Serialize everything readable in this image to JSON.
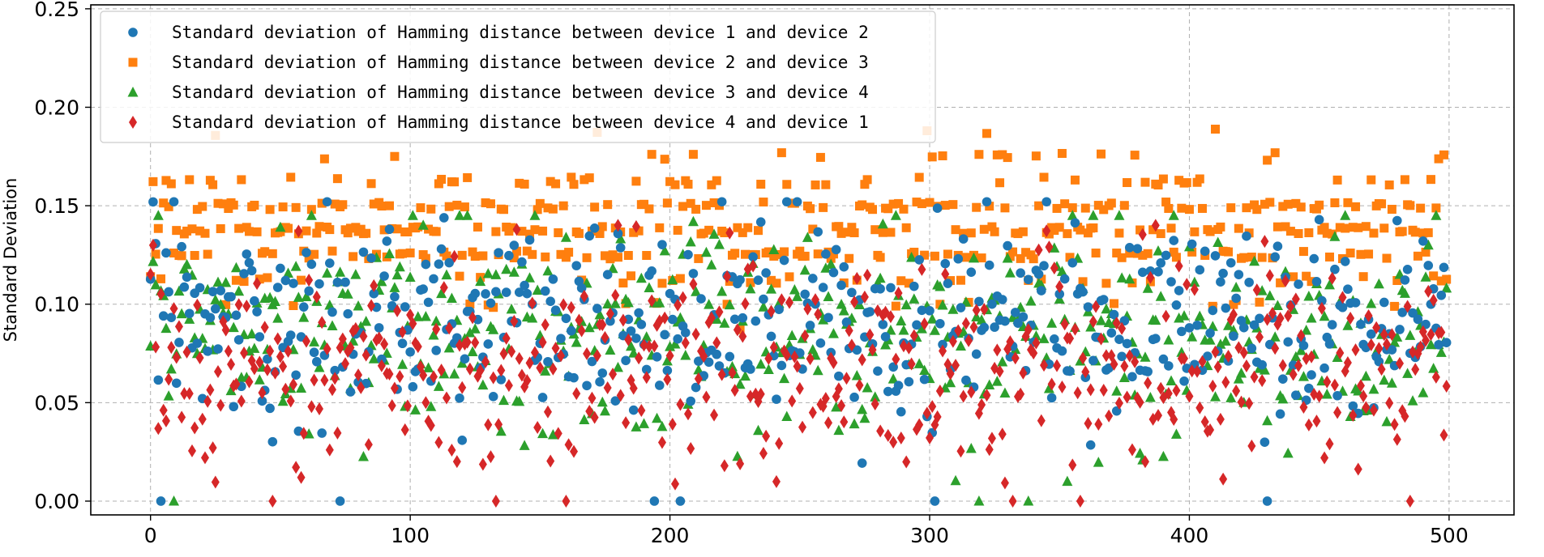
{
  "chart_data": {
    "type": "scatter",
    "title": "",
    "xlabel": "",
    "ylabel": "Standard Deviation",
    "xlim": [
      -23,
      525
    ],
    "ylim": [
      -0.007,
      0.252
    ],
    "xticks": [
      0,
      100,
      200,
      300,
      400,
      500
    ],
    "yticks": [
      0.0,
      0.05,
      0.1,
      0.15,
      0.2,
      0.25
    ],
    "ytick_labels": [
      "0.00",
      "0.05",
      "0.10",
      "0.15",
      "0.20",
      "0.25"
    ],
    "grid": true,
    "legend_position": "top-left",
    "n_points": 500,
    "note": "",
    "series": [
      {
        "name": "Standard deviation of Hamming distance between device 1 and device 2",
        "color": "#1f77b4",
        "marker": "circle",
        "mean": 0.092,
        "sd": 0.025,
        "min": 0.0,
        "max": 0.152
      },
      {
        "name": "Standard deviation of Hamming distance between device 2 and device 3",
        "color": "#ff7f0e",
        "marker": "square",
        "mean": 0.138,
        "sd": 0.018,
        "min": 0.063,
        "max": 0.188
      },
      {
        "name": "Standard deviation of Hamming distance between device 3 and device 4",
        "color": "#2ca02c",
        "marker": "triangle",
        "mean": 0.088,
        "sd": 0.027,
        "min": 0.0,
        "max": 0.145
      },
      {
        "name": "Standard deviation of Hamming distance between device 4 and device 1",
        "color": "#d62728",
        "marker": "diamond",
        "mean": 0.07,
        "sd": 0.027,
        "min": 0.0,
        "max": 0.14
      }
    ]
  }
}
